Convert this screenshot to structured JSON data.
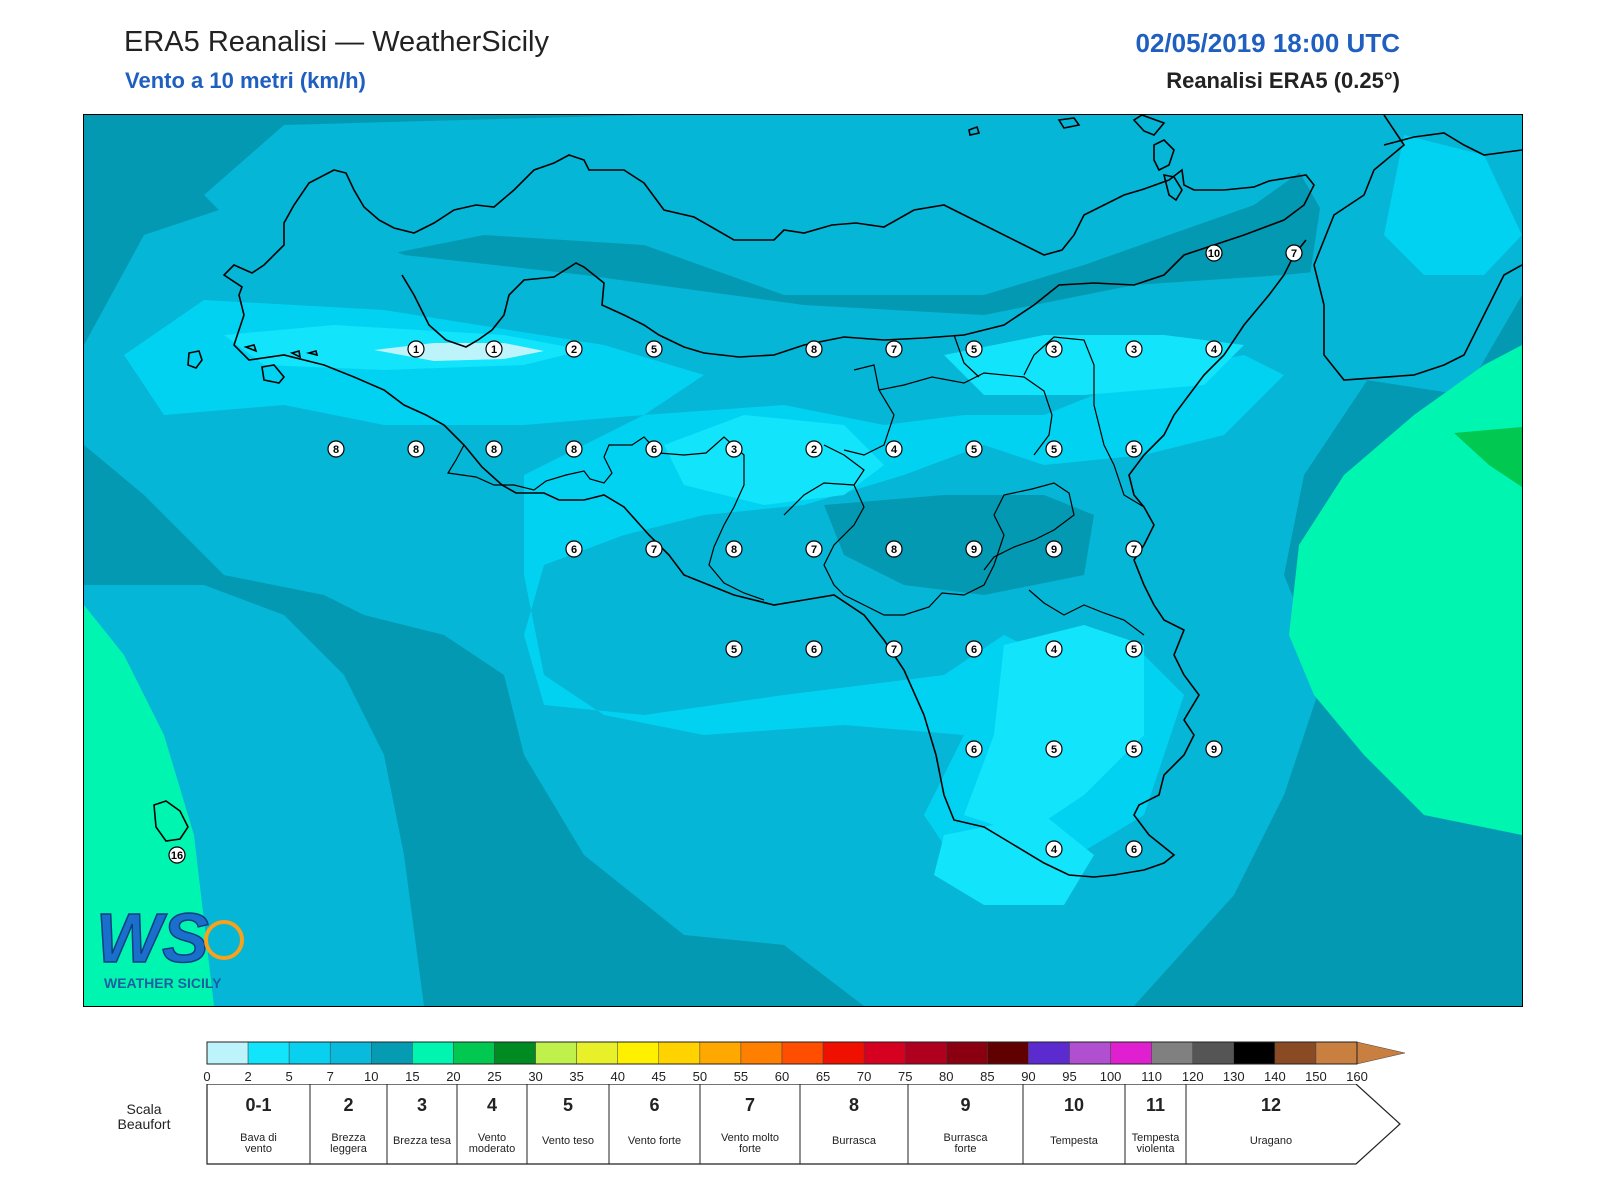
{
  "header": {
    "title": "ERA5 Reanalisi — WeatherSicily",
    "subtitle": "Vento a 10 metri (km/h)",
    "datetime": "02/05/2019 18:00 UTC",
    "source": "Reanalisi ERA5 (0.25°)"
  },
  "logo": {
    "letters": "WS",
    "text": "WEATHER SICILY"
  },
  "stations": [
    {
      "v": "1",
      "id": "s1"
    },
    {
      "v": "1",
      "id": "s2"
    },
    {
      "v": "2",
      "id": "s3"
    },
    {
      "v": "5",
      "id": "s4"
    },
    {
      "v": "8",
      "id": "s5"
    },
    {
      "v": "7",
      "id": "s6"
    },
    {
      "v": "5",
      "id": "s7"
    },
    {
      "v": "3",
      "id": "s8"
    },
    {
      "v": "3",
      "id": "s9"
    },
    {
      "v": "4",
      "id": "s10"
    },
    {
      "v": "8",
      "id": "s11"
    },
    {
      "v": "8",
      "id": "s12"
    },
    {
      "v": "8",
      "id": "s13"
    },
    {
      "v": "8",
      "id": "s14"
    },
    {
      "v": "6",
      "id": "s15"
    },
    {
      "v": "3",
      "id": "s16"
    },
    {
      "v": "2",
      "id": "s17"
    },
    {
      "v": "4",
      "id": "s18"
    },
    {
      "v": "5",
      "id": "s19"
    },
    {
      "v": "5",
      "id": "s20"
    },
    {
      "v": "5",
      "id": "s21"
    },
    {
      "v": "6",
      "id": "s22"
    },
    {
      "v": "7",
      "id": "s23"
    },
    {
      "v": "8",
      "id": "s24"
    },
    {
      "v": "7",
      "id": "s25"
    },
    {
      "v": "8",
      "id": "s26"
    },
    {
      "v": "9",
      "id": "s27"
    },
    {
      "v": "9",
      "id": "s28"
    },
    {
      "v": "7",
      "id": "s29"
    },
    {
      "v": "5",
      "id": "s30"
    },
    {
      "v": "6",
      "id": "s31"
    },
    {
      "v": "7",
      "id": "s32"
    },
    {
      "v": "6",
      "id": "s33"
    },
    {
      "v": "4",
      "id": "s34"
    },
    {
      "v": "5",
      "id": "s35"
    },
    {
      "v": "6",
      "id": "s36"
    },
    {
      "v": "5",
      "id": "s37"
    },
    {
      "v": "5",
      "id": "s38"
    },
    {
      "v": "9",
      "id": "s39"
    },
    {
      "v": "4",
      "id": "s40"
    },
    {
      "v": "6",
      "id": "s41"
    },
    {
      "v": "10",
      "id": "s42"
    },
    {
      "v": "7",
      "id": "s43"
    },
    {
      "v": "16",
      "id": "s44"
    }
  ],
  "colorbar": {
    "ticks": [
      "0",
      "2",
      "5",
      "7",
      "10",
      "15",
      "20",
      "25",
      "30",
      "35",
      "40",
      "45",
      "50",
      "55",
      "60",
      "65",
      "70",
      "75",
      "80",
      "85",
      "90",
      "95",
      "100",
      "110",
      "120",
      "130",
      "140",
      "150",
      "160"
    ],
    "colors": [
      "#bdf3fb",
      "#12e4fb",
      "#0ad0f0",
      "#08bbdc",
      "#049bb3",
      "#00f5b0",
      "#00c850",
      "#008a22",
      "#c0f04a",
      "#e8f02a",
      "#fff000",
      "#ffd200",
      "#ffa800",
      "#ff7f00",
      "#ff4e00",
      "#f01000",
      "#d60020",
      "#b00020",
      "#8a0010",
      "#600000",
      "#5c2bd0",
      "#b050d0",
      "#e020d0",
      "#808080",
      "#555555",
      "#000000",
      "#8a4a24",
      "#c87f40"
    ]
  },
  "beaufort": {
    "scale_label": "Scala Beaufort",
    "classes": [
      {
        "num": "0-1",
        "name": "Bava di vento"
      },
      {
        "num": "2",
        "name": "Brezza leggera"
      },
      {
        "num": "3",
        "name": "Brezza tesa"
      },
      {
        "num": "4",
        "name": "Vento moderato"
      },
      {
        "num": "5",
        "name": "Vento teso"
      },
      {
        "num": "6",
        "name": "Vento forte"
      },
      {
        "num": "7",
        "name": "Vento molto forte"
      },
      {
        "num": "8",
        "name": "Burrasca"
      },
      {
        "num": "9",
        "name": "Burrasca forte"
      },
      {
        "num": "10",
        "name": "Tempesta"
      },
      {
        "num": "11",
        "name": "Tempesta violenta"
      },
      {
        "num": "12",
        "name": "Uragano"
      }
    ]
  },
  "colors": {
    "field_dark": "#0399b3",
    "field_mid": "#05b6d6",
    "field_light": "#02d2f2",
    "field_lighter": "#12e4fb",
    "field_calm": "#bdf3fb",
    "green_light": "#00f5b0",
    "green_dark": "#00c850",
    "title_blue": "#1f5fbf"
  }
}
